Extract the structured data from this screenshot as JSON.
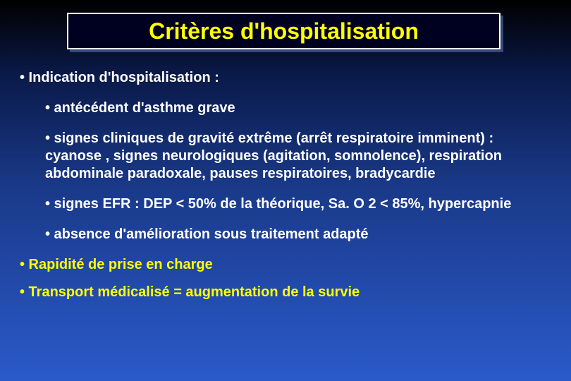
{
  "slide": {
    "title": "Critères d'hospitalisation",
    "title_color": "#ffff00",
    "title_bg": "#000020",
    "title_border": "#ffffff",
    "background_gradient": [
      "#000000",
      "#0a1a4a",
      "#1a3a8a",
      "#2a5aca"
    ],
    "text_color": "#ffffff",
    "highlight_color": "#ffff00",
    "fontsize_title": 32,
    "fontsize_body": 20,
    "bullets": {
      "main1": "• Indication d'hospitalisation :",
      "sub1": "• antécédent d'asthme grave",
      "sub2": "• signes cliniques de gravité extrême (arrêt respiratoire imminent) : cyanose , signes neurologiques (agitation, somnolence), respiration abdominale paradoxale, pauses respiratoires, bradycardie",
      "sub3": "• signes EFR : DEP < 50% de la théorique, Sa. O 2 < 85%, hypercapnie",
      "sub4": "• absence d'amélioration sous traitement adapté",
      "yellow1": "• Rapidité de prise en charge",
      "yellow2": "• Transport médicalisé = augmentation de la survie"
    }
  }
}
